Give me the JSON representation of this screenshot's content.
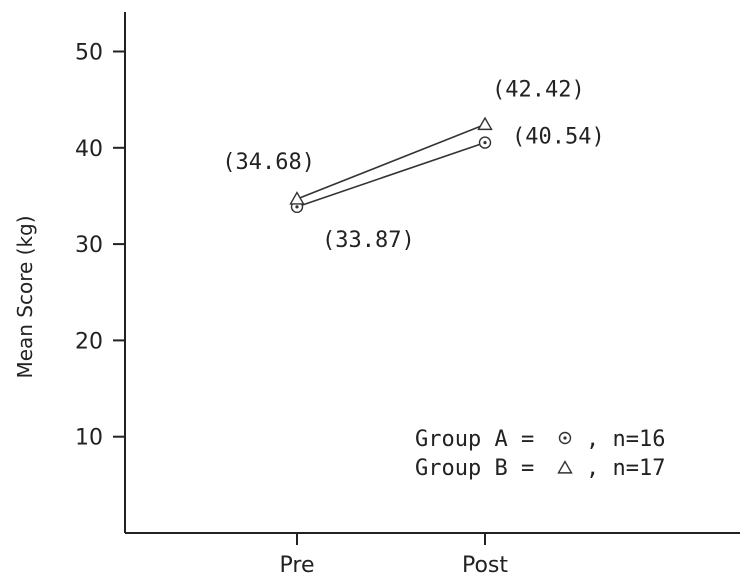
{
  "chart_data": {
    "type": "line",
    "categories": [
      "Pre",
      "Post"
    ],
    "ylabel": "Mean Score (kg)",
    "yticks": [
      10,
      20,
      30,
      40,
      50
    ],
    "ylim": [
      0,
      55
    ],
    "grid": false,
    "series": [
      {
        "name": "Group A",
        "marker": "circle-dot",
        "values": [
          33.87,
          40.54
        ],
        "value_labels": [
          "(33.87)",
          "(40.54)"
        ]
      },
      {
        "name": "Group B",
        "marker": "triangle",
        "values": [
          34.68,
          42.42
        ],
        "value_labels": [
          "(34.68)",
          "(42.42)"
        ]
      }
    ],
    "legend": {
      "position": "bottom-right",
      "entries": [
        {
          "prefix": "Group A =",
          "suffix": ", n=16"
        },
        {
          "prefix": "Group B =",
          "suffix": ", n=17"
        }
      ]
    }
  }
}
